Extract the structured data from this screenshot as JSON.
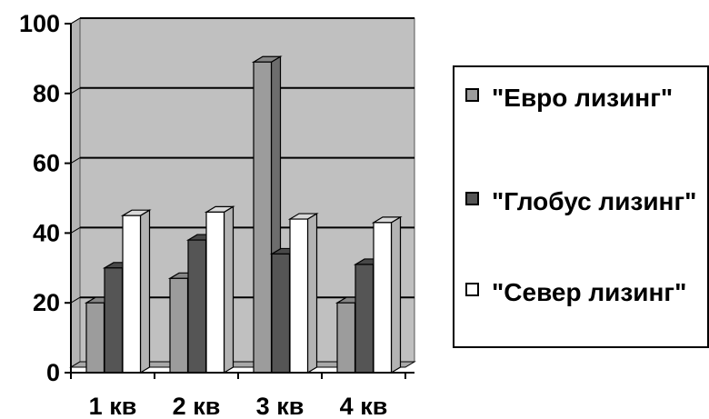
{
  "chart_data": {
    "type": "bar",
    "style": "3d-clustered-column",
    "categories": [
      "1 кв",
      "2 кв",
      "3 кв",
      "4 кв"
    ],
    "series": [
      {
        "name": "\"Евро лизинг\"",
        "values": [
          20,
          27,
          89,
          20
        ],
        "color": "#9c9c9c"
      },
      {
        "name": "\"Глобус лизинг\"",
        "values": [
          30,
          38,
          34,
          31
        ],
        "color": "#555555"
      },
      {
        "name": "\"Север лизинг\"",
        "values": [
          45,
          46,
          44,
          43
        ],
        "color": "#ffffff"
      }
    ],
    "yticks": [
      "0",
      "20",
      "40",
      "60",
      "80",
      "100"
    ],
    "ylim": [
      0,
      100
    ],
    "grid": true,
    "plot_background": "#c0c0c0",
    "legend_position": "right"
  },
  "legend": {
    "items": [
      {
        "label": "\"Евро лизинг\""
      },
      {
        "label": "\"Глобус лизинг\""
      },
      {
        "label": "\"Север лизинг\""
      }
    ]
  }
}
